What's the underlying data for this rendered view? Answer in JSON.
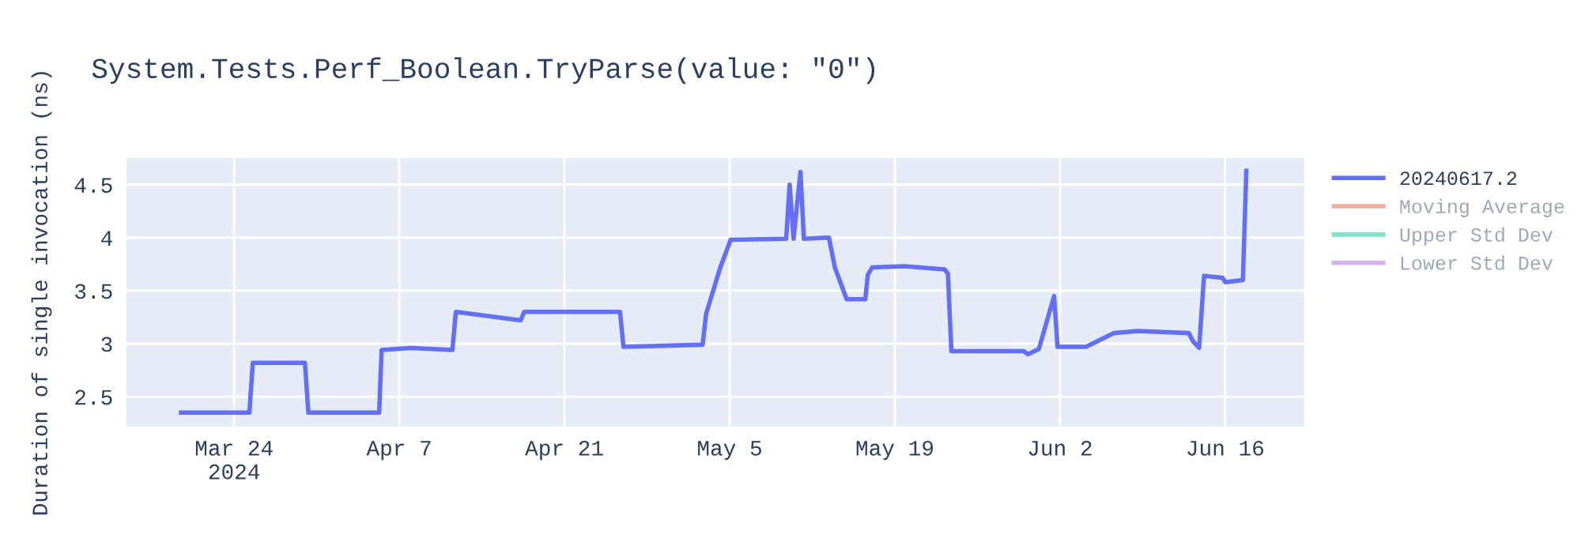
{
  "chart_data": {
    "type": "line",
    "title": "System.Tests.Perf_Boolean.TryParse(value: \"0\")",
    "ylabel": "Duration of single invocation (ns)",
    "x": [
      "2024-03-19T12:00",
      "2024-03-25T07:00",
      "2024-03-25T14:00",
      "2024-03-30T00:00",
      "2024-03-30T07:00",
      "2024-04-05T07:00",
      "2024-04-05T12:00",
      "2024-04-08T00:00",
      "2024-04-11T12:00",
      "2024-04-11T19:00",
      "2024-04-17T07:00",
      "2024-04-17T14:00",
      "2024-04-25T17:00",
      "2024-04-26T00:00",
      "2024-05-02T17:00",
      "2024-05-03T00:00",
      "2024-05-04T05:00",
      "2024-05-05T02:00",
      "2024-05-09T19:00",
      "2024-05-10T02:00",
      "2024-05-10T10:00",
      "2024-05-11T00:00",
      "2024-05-11T07:00",
      "2024-05-13T10:00",
      "2024-05-13T22:00",
      "2024-05-14T22:00",
      "2024-05-16T12:00",
      "2024-05-16T17:00",
      "2024-05-17T02:00",
      "2024-05-19T19:00",
      "2024-05-23T05:00",
      "2024-05-23T12:00",
      "2024-05-23T19:00",
      "2024-05-27T05:00",
      "2024-05-29T22:00",
      "2024-05-30T07:00",
      "2024-05-31T05:00",
      "2024-06-01T12:00",
      "2024-06-01T19:00",
      "2024-06-04T05:00",
      "2024-06-06T14:00",
      "2024-06-08T14:00",
      "2024-06-12T22:00",
      "2024-06-13T07:00",
      "2024-06-13T19:00",
      "2024-06-14T05:00",
      "2024-06-15T19:00",
      "2024-06-16T00:00",
      "2024-06-17T12:00",
      "2024-06-17T19:00"
    ],
    "series": [
      {
        "name": "20240617.2",
        "color": "#636efa",
        "values": [
          2.35,
          2.35,
          2.82,
          2.82,
          2.35,
          2.35,
          2.94,
          2.96,
          2.94,
          3.3,
          3.22,
          3.3,
          3.3,
          2.97,
          2.99,
          3.28,
          3.72,
          3.98,
          3.99,
          4.5,
          3.99,
          4.62,
          3.99,
          4.0,
          3.72,
          3.42,
          3.42,
          3.65,
          3.72,
          3.73,
          3.7,
          3.66,
          2.93,
          2.93,
          2.93,
          2.9,
          2.95,
          3.45,
          2.97,
          2.97,
          3.1,
          3.12,
          3.1,
          3.02,
          2.96,
          3.64,
          3.62,
          3.58,
          3.6,
          4.63
        ]
      },
      {
        "name": "Moving Average",
        "color": "#ef553b",
        "values": [
          null,
          null,
          null,
          null,
          null,
          null,
          null,
          null,
          null,
          null,
          null,
          null,
          null,
          null,
          null,
          null,
          null,
          null,
          null,
          null,
          null,
          null,
          null,
          null,
          null,
          null,
          null,
          null,
          null,
          null,
          null,
          null,
          null,
          null,
          null,
          null,
          null,
          null,
          null,
          null,
          null,
          null,
          null,
          null,
          null,
          null,
          null,
          null,
          null,
          null
        ]
      },
      {
        "name": "Upper Std Dev",
        "color": "#00cc96",
        "values": [
          null,
          null,
          null,
          null,
          null,
          null,
          null,
          null,
          null,
          null,
          null,
          null,
          null,
          null,
          null,
          null,
          null,
          null,
          null,
          null,
          null,
          null,
          null,
          null,
          null,
          null,
          null,
          null,
          null,
          null,
          null,
          null,
          null,
          null,
          null,
          null,
          null,
          null,
          null,
          null,
          null,
          null,
          null,
          null,
          null,
          null,
          null,
          null,
          null,
          null
        ]
      },
      {
        "name": "Lower Std Dev",
        "color": "#ab63fa",
        "values": [
          null,
          null,
          null,
          null,
          null,
          null,
          null,
          null,
          null,
          null,
          null,
          null,
          null,
          null,
          null,
          null,
          null,
          null,
          null,
          null,
          null,
          null,
          null,
          null,
          null,
          null,
          null,
          null,
          null,
          null,
          null,
          null,
          null,
          null,
          null,
          null,
          null,
          null,
          null,
          null,
          null,
          null,
          null,
          null,
          null,
          null,
          null,
          null,
          null,
          null
        ]
      }
    ],
    "xlim": [
      "2024-03-14T21:00",
      "2024-06-22T17:00"
    ],
    "xticks": [
      {
        "value": "2024-03-24",
        "label": "Mar 24\n2024"
      },
      {
        "value": "2024-04-07",
        "label": "Apr 7"
      },
      {
        "value": "2024-04-21",
        "label": "Apr 21"
      },
      {
        "value": "2024-05-05",
        "label": "May 5"
      },
      {
        "value": "2024-05-19",
        "label": "May 19"
      },
      {
        "value": "2024-06-02",
        "label": "Jun 2"
      },
      {
        "value": "2024-06-16",
        "label": "Jun 16"
      }
    ],
    "ylim": [
      2.22,
      4.75
    ],
    "yticks": [
      2.5,
      3,
      3.5,
      4,
      4.5
    ],
    "grid": true,
    "legend": "top right",
    "line_style": "solid",
    "marker": "none"
  }
}
